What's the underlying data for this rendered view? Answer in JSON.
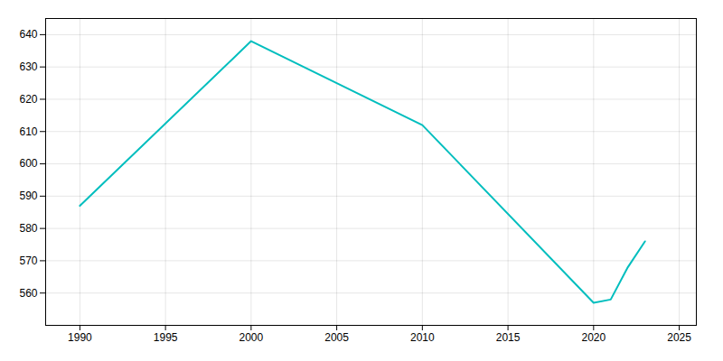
{
  "chart_data": {
    "type": "line",
    "x": [
      1990,
      2000,
      2010,
      2020,
      2021,
      2022,
      2023
    ],
    "values": [
      587,
      638,
      612,
      557,
      558,
      568,
      576
    ],
    "color": "#00BEBE",
    "xlim": [
      1988,
      2026
    ],
    "ylim": [
      550,
      645
    ],
    "xticks": [
      1990,
      1995,
      2000,
      2005,
      2010,
      2015,
      2020,
      2025
    ],
    "yticks": [
      560,
      570,
      580,
      590,
      600,
      610,
      620,
      630,
      640
    ],
    "grid": true
  }
}
